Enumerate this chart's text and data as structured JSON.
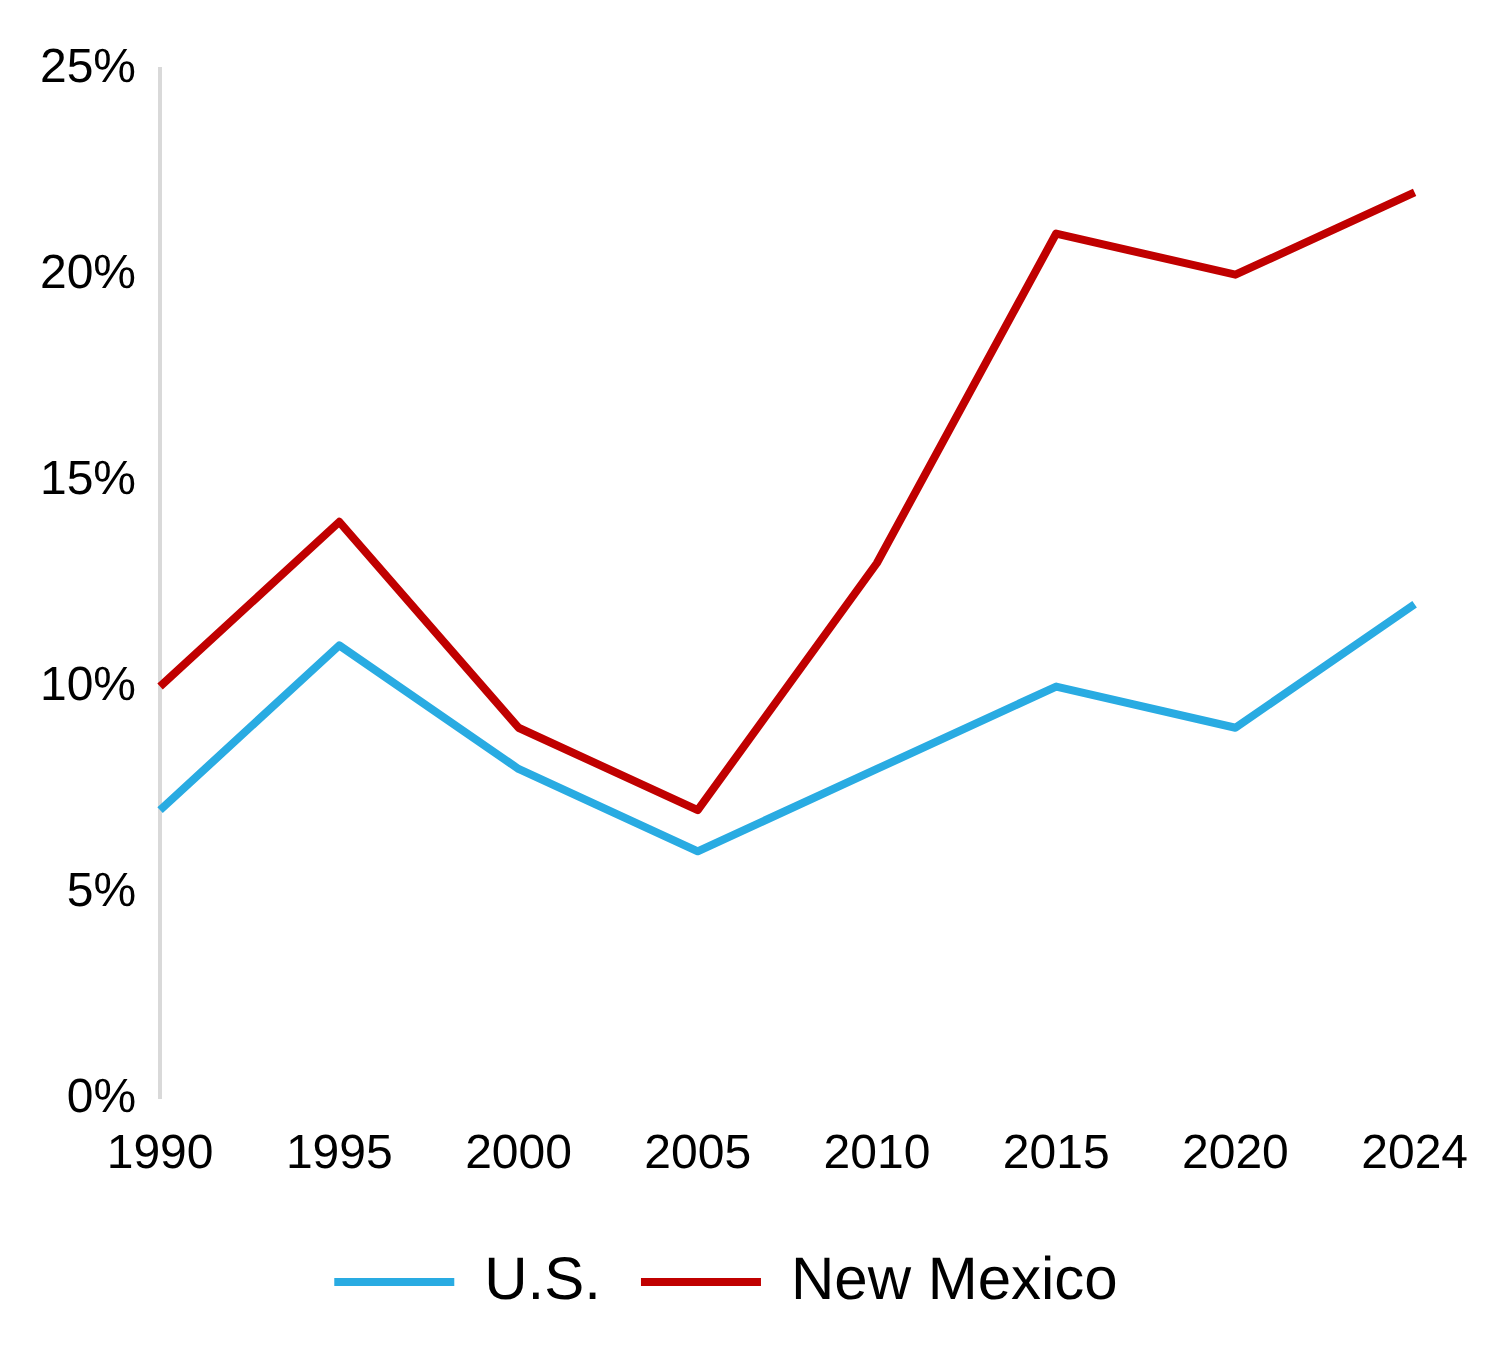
{
  "chart_data": {
    "type": "line",
    "categories": [
      "1990",
      "1995",
      "2000",
      "2005",
      "2010",
      "2015",
      "2020",
      "2024"
    ],
    "series": [
      {
        "name": "U.S.",
        "color": "#29abe2",
        "values": [
          7,
          11,
          8,
          6,
          8,
          10,
          9,
          12
        ]
      },
      {
        "name": "New Mexico",
        "color": "#c00000",
        "values": [
          10,
          14,
          9,
          7,
          13,
          21,
          20,
          22
        ]
      }
    ],
    "ylim": [
      0,
      25
    ],
    "yticks": [
      {
        "value": 0,
        "label": "0%"
      },
      {
        "value": 5,
        "label": "5%"
      },
      {
        "value": 10,
        "label": "10%"
      },
      {
        "value": 15,
        "label": "15%"
      },
      {
        "value": 20,
        "label": "20%"
      },
      {
        "value": 25,
        "label": "25%"
      }
    ],
    "grid": false,
    "legend": "bottom",
    "marker": "none",
    "line_style": "solid"
  }
}
